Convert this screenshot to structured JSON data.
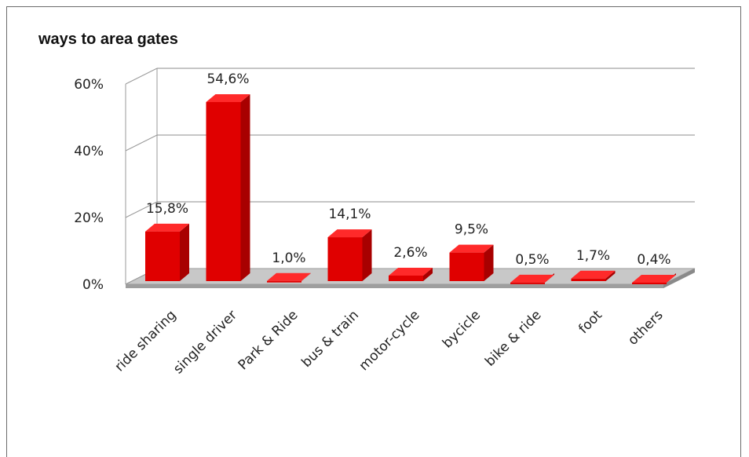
{
  "chart_data": {
    "type": "bar",
    "title": "ways to area gates",
    "categories": [
      "ride sharing",
      "single driver",
      "Park & Ride",
      "bus & train",
      "motor-cycle",
      "bycicle",
      "bike & ride",
      "foot",
      "others"
    ],
    "values": [
      15.8,
      54.6,
      1.0,
      14.1,
      2.6,
      9.5,
      0.5,
      1.7,
      0.4
    ],
    "data_labels": [
      "15,8%",
      "54,6%",
      "1,0%",
      "14,1%",
      "2,6%",
      "9,5%",
      "0,5%",
      "1,7%",
      "0,4%"
    ],
    "y_ticks": [
      "0%",
      "20%",
      "40%",
      "60%"
    ],
    "ylim": [
      0,
      60
    ],
    "xlabel": "",
    "ylabel": "",
    "grid": true,
    "legend": "none",
    "bar_color": "#e00000",
    "bar_side_color": "#a80000",
    "bar_top_color": "#ff2a2a"
  }
}
